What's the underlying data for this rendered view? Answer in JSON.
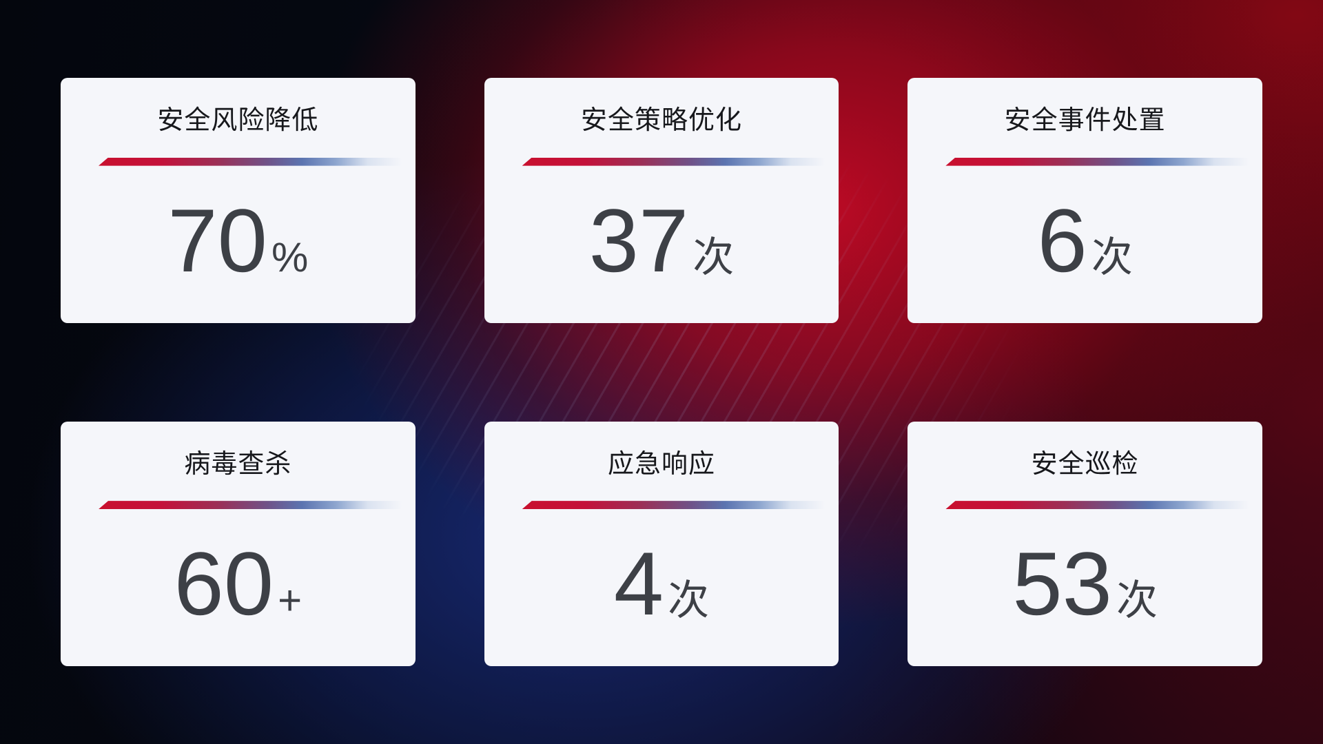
{
  "dashboard": {
    "cards": [
      {
        "title": "安全风险降低",
        "value": "70",
        "unit": "%"
      },
      {
        "title": "安全策略优化",
        "value": "37",
        "unit": "次"
      },
      {
        "title": "安全事件处置",
        "value": "6",
        "unit": "次"
      },
      {
        "title": "病毒查杀",
        "value": "60",
        "unit": "+"
      },
      {
        "title": "应急响应",
        "value": "4",
        "unit": "次"
      },
      {
        "title": "安全巡检",
        "value": "53",
        "unit": "次"
      }
    ],
    "colors": {
      "card_background": "#f5f6fa",
      "title_text": "#17181c",
      "value_text": "#3d4046",
      "divider_gradient_start": "#c8102e",
      "divider_gradient_mid": "#6f5288",
      "divider_gradient_end": "#8ea6cf",
      "background_red_glow": "#c40a26",
      "background_blue_glow": "#182a76",
      "background_base": "#05070e"
    }
  }
}
